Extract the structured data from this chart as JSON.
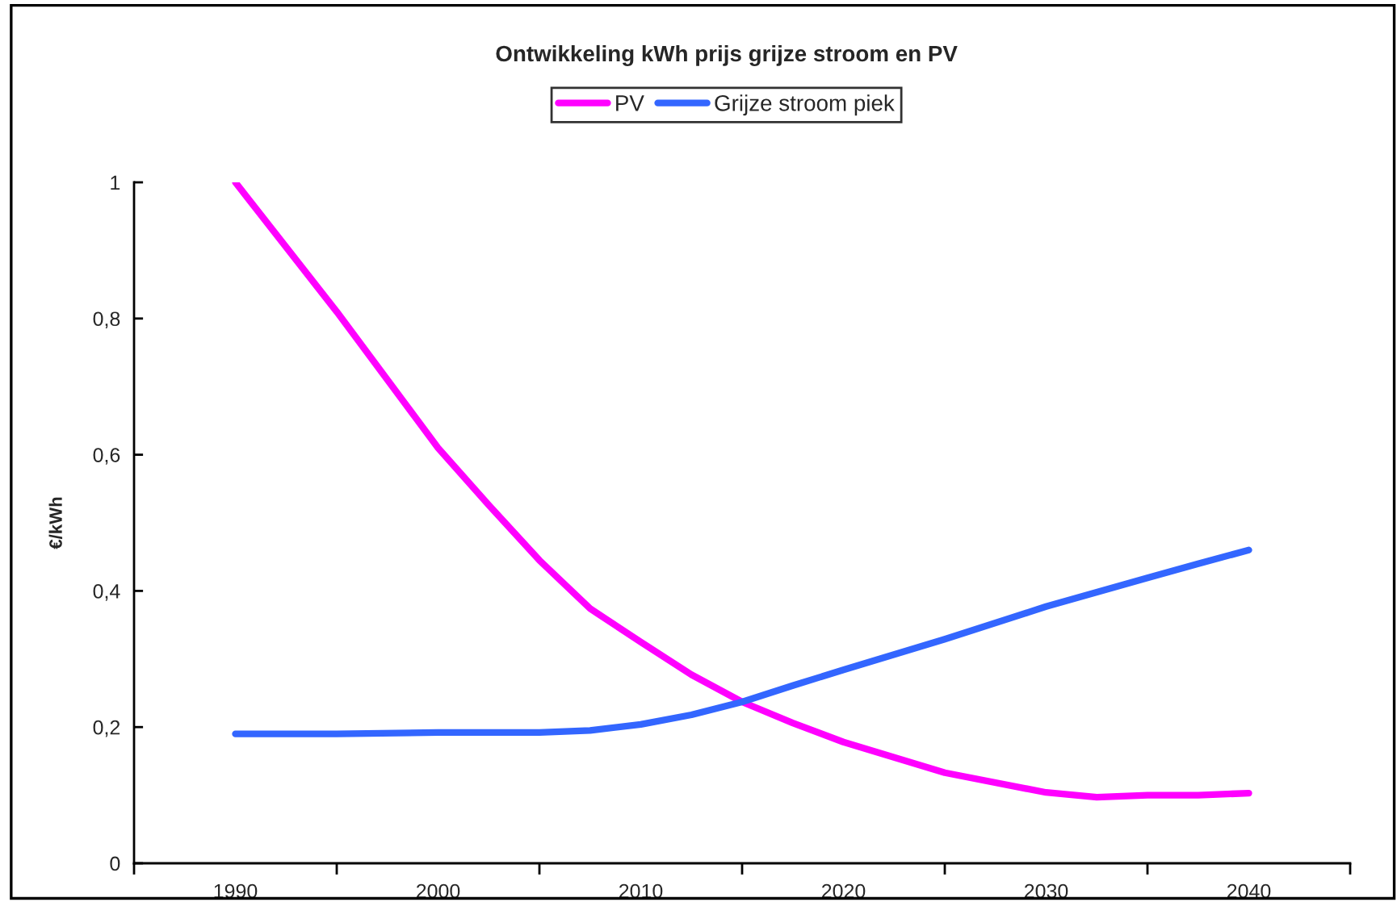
{
  "chart_data": {
    "type": "line",
    "title": "Ontwikkeling kWh prijs grijze stroom en PV",
    "ylabel": "€/kWh",
    "x": [
      1990,
      1995,
      2000,
      2002.5,
      2005,
      2007.5,
      2010,
      2012.5,
      2015,
      2017.5,
      2020,
      2025,
      2030,
      2032.5,
      2035,
      2037.5,
      2040
    ],
    "series": [
      {
        "name": "PV",
        "color": "#ff00ff",
        "values": [
          1.0,
          0.81,
          0.61,
          0.526,
          0.445,
          0.374,
          0.325,
          0.277,
          0.237,
          0.206,
          0.178,
          0.133,
          0.104,
          0.097,
          0.1,
          0.1,
          0.103
        ]
      },
      {
        "name": "Grijze stroom piek",
        "color": "#3366ff",
        "values": [
          0.19,
          0.19,
          0.192,
          0.192,
          0.192,
          0.195,
          0.204,
          0.218,
          0.237,
          0.261,
          0.284,
          0.329,
          0.377,
          0.398,
          0.419,
          0.44,
          0.46
        ]
      }
    ],
    "xlim": [
      1985,
      2045
    ],
    "xticks": [
      {
        "value": 1985,
        "label": null
      },
      1990,
      {
        "value": 1995,
        "label": null
      },
      2000,
      {
        "value": 2005,
        "label": null
      },
      2010,
      {
        "value": 2015,
        "label": null
      },
      2020,
      {
        "value": 2025,
        "label": null
      },
      2030,
      {
        "value": 2035,
        "label": null
      },
      2040,
      {
        "value": 2045,
        "label": null
      }
    ],
    "ylim": [
      0,
      1
    ],
    "yticks": [
      0,
      {
        "value": 0.2,
        "label": "0,2"
      },
      {
        "value": 0.4,
        "label": "0,4"
      },
      {
        "value": 0.6,
        "label": "0,6"
      },
      {
        "value": 0.8,
        "label": "0,8"
      },
      1
    ],
    "grid": false,
    "legend": "top",
    "marker": "none",
    "line_style": "solid"
  }
}
